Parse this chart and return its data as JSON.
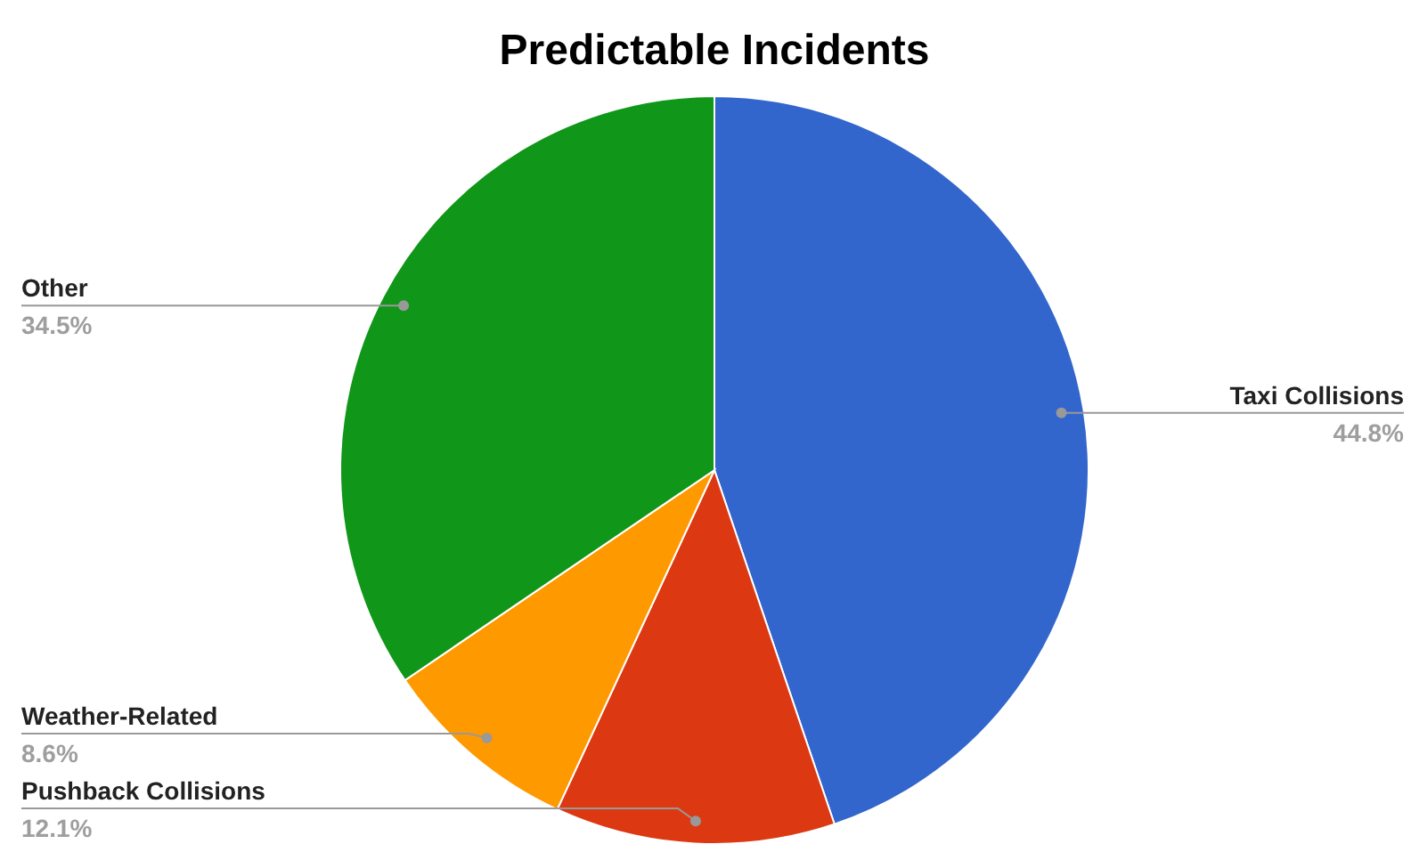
{
  "chart_data": {
    "type": "pie",
    "title": "Predictable Incidents",
    "categories": [
      "Taxi Collisions",
      "Pushback Collisions",
      "Weather-Related",
      "Other"
    ],
    "values": [
      44.8,
      12.1,
      8.6,
      34.5
    ],
    "value_labels": [
      "44.8%",
      "12.1%",
      "8.6%",
      "34.5%"
    ],
    "colors": [
      "#3366cc",
      "#dc3912",
      "#ff9900",
      "#109618"
    ]
  }
}
